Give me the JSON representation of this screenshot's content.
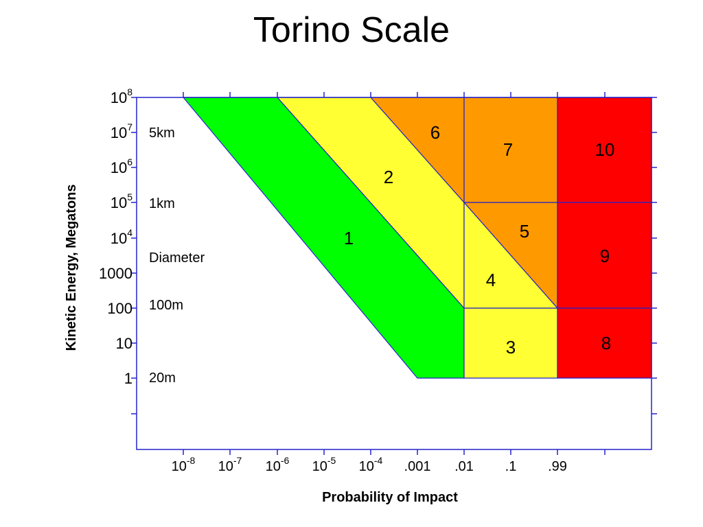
{
  "title": "Torino Scale",
  "chart_data": {
    "type": "area",
    "title": "Torino Scale",
    "xlabel": "Probability of Impact",
    "ylabel": "Kinetic Energy, Megatons",
    "x_scale": "log",
    "y_scale": "log",
    "x_ticks": [
      {
        "base": "10",
        "exp": "-8"
      },
      {
        "base": "10",
        "exp": "-7"
      },
      {
        "base": "10",
        "exp": "-6"
      },
      {
        "base": "10",
        "exp": "-5"
      },
      {
        "base": "10",
        "exp": "-4"
      },
      {
        "base": ".001",
        "exp": ""
      },
      {
        "base": ".01",
        "exp": ""
      },
      {
        "base": ".1",
        "exp": ""
      },
      {
        "base": ".99",
        "exp": ""
      }
    ],
    "y_ticks": [
      {
        "base": "10",
        "exp": "8"
      },
      {
        "base": "10",
        "exp": "7"
      },
      {
        "base": "10",
        "exp": "6"
      },
      {
        "base": "10",
        "exp": "5"
      },
      {
        "base": "10",
        "exp": "4"
      },
      {
        "base": "1000",
        "exp": ""
      },
      {
        "base": "100",
        "exp": ""
      },
      {
        "base": "10",
        "exp": ""
      },
      {
        "base": "1",
        "exp": ""
      }
    ],
    "diameter_labels": [
      {
        "label": "5km"
      },
      {
        "label": "1km"
      },
      {
        "label": "Diameter"
      },
      {
        "label": "100m"
      },
      {
        "label": "20m"
      }
    ],
    "zones": [
      {
        "value": "1",
        "color": "#00ff00"
      },
      {
        "value": "2",
        "color": "#ffff33"
      },
      {
        "value": "3",
        "color": "#ffff33"
      },
      {
        "value": "4",
        "color": "#ffff33"
      },
      {
        "value": "5",
        "color": "#ff9900"
      },
      {
        "value": "6",
        "color": "#ff9900"
      },
      {
        "value": "7",
        "color": "#ff9900"
      },
      {
        "value": "8",
        "color": "#ff0000"
      },
      {
        "value": "9",
        "color": "#ff0000"
      },
      {
        "value": "10",
        "color": "#ff0000"
      }
    ],
    "axis_color": "#2222cc"
  }
}
